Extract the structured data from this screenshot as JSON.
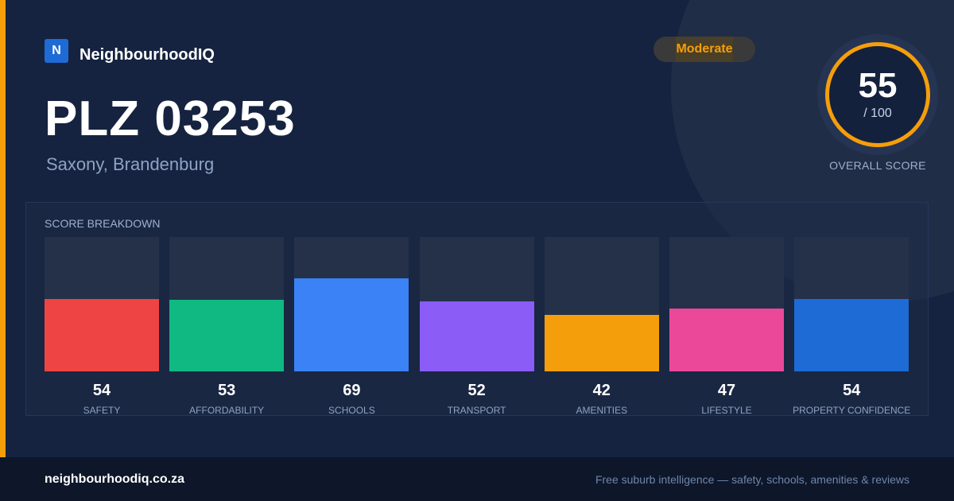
{
  "brand": {
    "logo_letter": "N",
    "name": "NeighbourhoodIQ"
  },
  "badge": {
    "label": "Moderate",
    "color": "#f59e0b"
  },
  "header": {
    "title": "PLZ 03253",
    "subtitle": "Saxony, Brandenburg"
  },
  "overall": {
    "score": "55",
    "max": "/ 100",
    "label": "OVERALL SCORE",
    "ring_color": "#f59e0b"
  },
  "breakdown": {
    "title": "SCORE BREAKDOWN",
    "max": 100,
    "categories": [
      {
        "label": "SAFETY",
        "value": 54,
        "color": "#ef4444"
      },
      {
        "label": "AFFORDABILITY",
        "value": 53,
        "color": "#10b981"
      },
      {
        "label": "SCHOOLS",
        "value": 69,
        "color": "#3b82f6"
      },
      {
        "label": "TRANSPORT",
        "value": 52,
        "color": "#8b5cf6"
      },
      {
        "label": "AMENITIES",
        "value": 42,
        "color": "#f59e0b"
      },
      {
        "label": "LIFESTYLE",
        "value": 47,
        "color": "#ec4899"
      },
      {
        "label": "PROPERTY CONFIDENCE",
        "value": 54,
        "color": "#1e6bd6"
      }
    ]
  },
  "footer": {
    "url": "neighbourhoodiq.co.za",
    "tagline": "Free suburb intelligence — safety, schools, amenities & reviews"
  }
}
